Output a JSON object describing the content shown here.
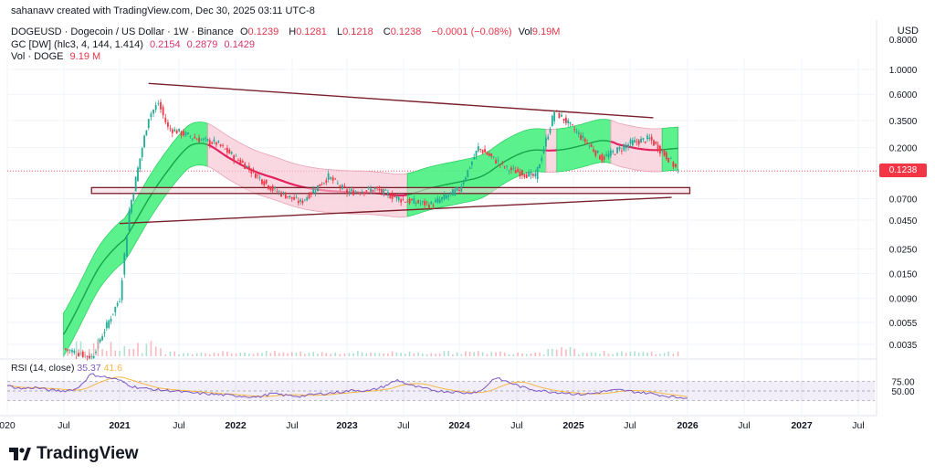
{
  "watermark": "sahanavv created with TradingView.com, Dec 30, 2025 03:11 UTC-8",
  "symbol": {
    "name": "DOGEUSD · Dogecoin / US Dollar · 1W · Binance",
    "o_label": "O",
    "o": "0.1239",
    "h_label": "H",
    "h": "0.1281",
    "l_label": "L",
    "l": "0.1218",
    "c_label": "C",
    "c": "0.1238",
    "change": "−0.0001 (−0.08%)",
    "vol_label": "Vol",
    "vol": "9.19M"
  },
  "indicator_gc": {
    "label": "GC [DW] (hlc3, 4, 144, 1.414)",
    "v1": "0.2154",
    "v2": "0.2879",
    "v3": "0.1429"
  },
  "indicator_vol": {
    "label": "Vol · DOGE",
    "value": "9.19 M"
  },
  "price_badge": "0.1238",
  "currency": "USD",
  "rsi": {
    "label": "RSI (14, close)",
    "v1": "35.37",
    "v2": "41.6"
  },
  "brand": "TradingView",
  "colors": {
    "up": "#22ab94",
    "down": "#f23645",
    "band_green": "#3ef07a",
    "band_pink": "#f6c8d6",
    "trend": "#7a1f2b",
    "rsi": "#7e57c2"
  },
  "chart_data": {
    "type": "line",
    "y_scale": "log",
    "y_ticks": [
      "1.0000",
      "0.6000",
      "0.3500",
      "0.2000",
      "0.1238",
      "0.0700",
      "0.0450",
      "0.0250",
      "0.0150",
      "0.0090",
      "0.0055",
      "0.0035"
    ],
    "y_top_partial": "0.8000",
    "x_ticks": [
      "020",
      "Jul",
      "2021",
      "Jul",
      "2022",
      "Jul",
      "2023",
      "Jul",
      "2024",
      "Jul",
      "2025",
      "Jul",
      "2026",
      "Jul",
      "2027",
      "Jul"
    ],
    "rsi_ticks": [
      "75.00",
      "50.00"
    ],
    "close_series": [
      {
        "x": "2020-07",
        "y": 0.0032
      },
      {
        "x": "2020-10",
        "y": 0.0027
      },
      {
        "x": "2021-01",
        "y": 0.009
      },
      {
        "x": "2021-02",
        "y": 0.055
      },
      {
        "x": "2021-04",
        "y": 0.38
      },
      {
        "x": "2021-05",
        "y": 0.5
      },
      {
        "x": "2021-06",
        "y": 0.3
      },
      {
        "x": "2021-09",
        "y": 0.24
      },
      {
        "x": "2021-11",
        "y": 0.22
      },
      {
        "x": "2022-02",
        "y": 0.14
      },
      {
        "x": "2022-05",
        "y": 0.085
      },
      {
        "x": "2022-08",
        "y": 0.065
      },
      {
        "x": "2022-11",
        "y": 0.11
      },
      {
        "x": "2023-01",
        "y": 0.08
      },
      {
        "x": "2023-04",
        "y": 0.085
      },
      {
        "x": "2023-07",
        "y": 0.068
      },
      {
        "x": "2023-10",
        "y": 0.062
      },
      {
        "x": "2024-01",
        "y": 0.085
      },
      {
        "x": "2024-03",
        "y": 0.2
      },
      {
        "x": "2024-06",
        "y": 0.13
      },
      {
        "x": "2024-09",
        "y": 0.11
      },
      {
        "x": "2024-11",
        "y": 0.42
      },
      {
        "x": "2024-12",
        "y": 0.36
      },
      {
        "x": "2025-02",
        "y": 0.24
      },
      {
        "x": "2025-04",
        "y": 0.16
      },
      {
        "x": "2025-07",
        "y": 0.22
      },
      {
        "x": "2025-09",
        "y": 0.24
      },
      {
        "x": "2025-11",
        "y": 0.16
      },
      {
        "x": "2025-12",
        "y": 0.1238
      }
    ],
    "trendlines": [
      {
        "from": {
          "x": "2021-04",
          "y": 0.75
        },
        "to": {
          "x": "2026-07",
          "y": 0.37
        }
      },
      {
        "from": {
          "x": "2021-01",
          "y": 0.042
        },
        "to": {
          "x": "2026-07",
          "y": 0.072
        }
      }
    ],
    "support_zone": {
      "x_from": "2020-10",
      "x_to": "2026-07",
      "y_from": 0.078,
      "y_to": 0.088
    },
    "rsi_series": [
      62,
      55,
      58,
      52,
      50,
      55,
      88,
      82,
      75,
      60,
      55,
      52,
      50,
      46,
      44,
      42,
      40,
      38,
      36,
      44,
      40,
      38,
      42,
      45,
      48,
      52,
      50,
      60,
      75,
      62,
      55,
      50,
      48,
      45,
      50,
      80,
      70,
      58,
      52,
      48,
      46,
      42,
      44,
      50,
      52,
      48,
      45,
      40,
      35.37
    ]
  }
}
